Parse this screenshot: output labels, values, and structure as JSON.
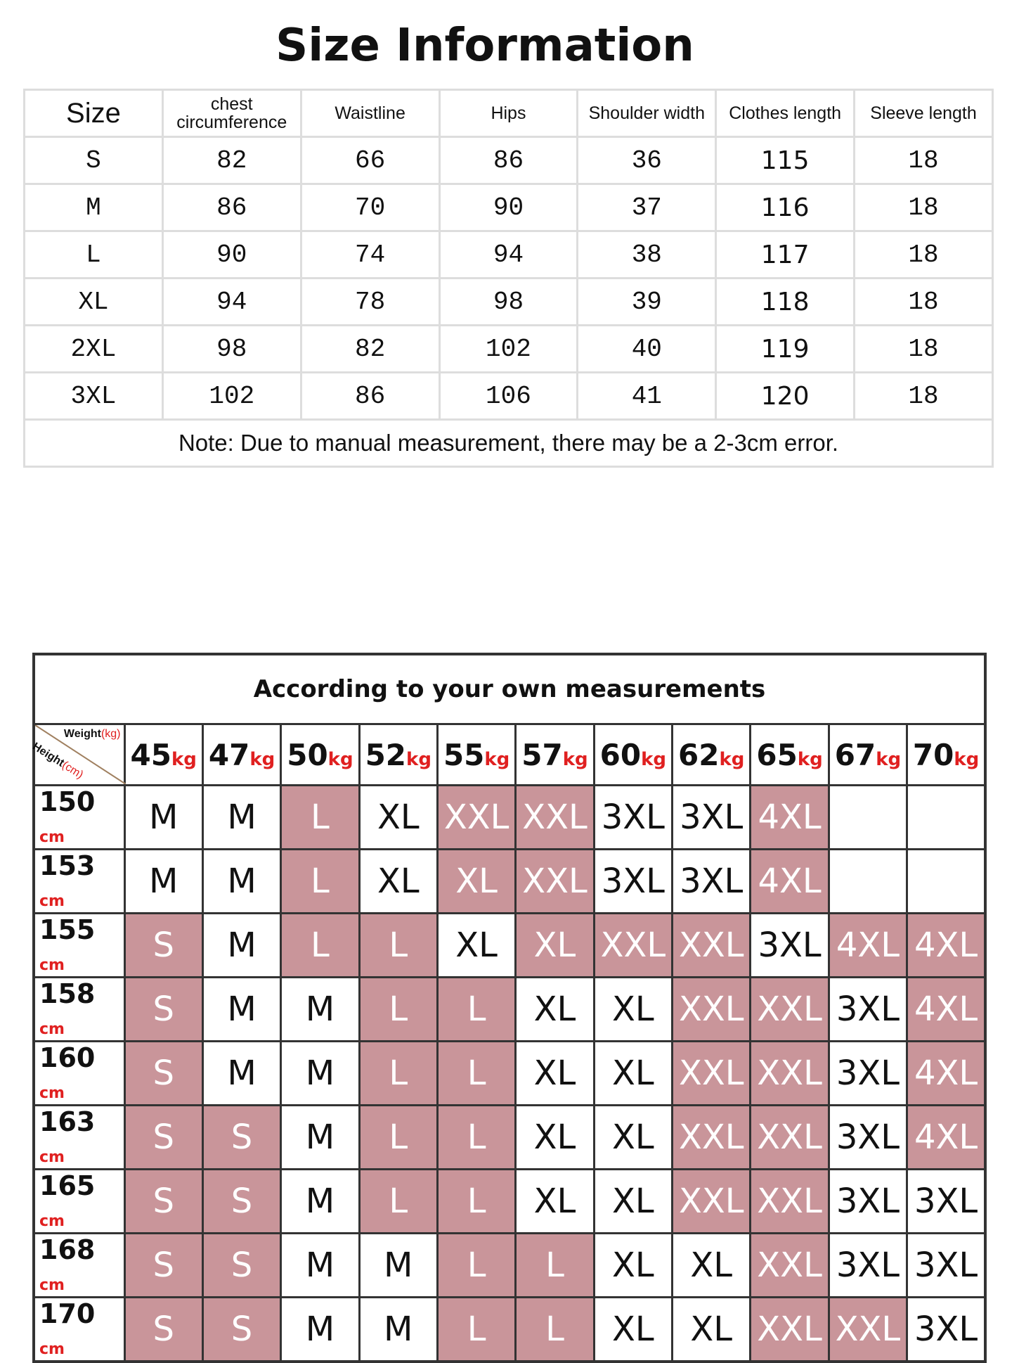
{
  "size_info": {
    "title": "Size Information",
    "headers": [
      "Size",
      "chest circumference",
      "Waistline",
      "Hips",
      "Shoulder width",
      "Clothes length",
      "Sleeve length"
    ],
    "rows": [
      [
        "S",
        "82",
        "66",
        "86",
        "36",
        "115",
        "18"
      ],
      [
        "M",
        "86",
        "70",
        "90",
        "37",
        "116",
        "18"
      ],
      [
        "L",
        "90",
        "74",
        "94",
        "38",
        "117",
        "18"
      ],
      [
        "XL",
        "94",
        "78",
        "98",
        "39",
        "118",
        "18"
      ],
      [
        "2XL",
        "98",
        "82",
        "102",
        "40",
        "119",
        "18"
      ],
      [
        "3XL",
        "102",
        "86",
        "106",
        "41",
        "120",
        "18"
      ]
    ],
    "note": "Note: Due to manual measurement, there may be a 2-3cm error."
  },
  "size_chart": {
    "title": "According to your own measurements",
    "corner_weight": "Weight",
    "corner_weight_unit": "(kg)",
    "corner_height": "Height",
    "corner_height_unit": "(cm)",
    "weight_unit": "kg",
    "height_unit": "cm",
    "weights": [
      "45",
      "47",
      "50",
      "52",
      "55",
      "57",
      "60",
      "62",
      "65",
      "67",
      "70"
    ],
    "highlight_color": "#c9959a",
    "rows": [
      {
        "height": "150",
        "sizes": [
          "M",
          "M",
          "L",
          "XL",
          "XXL",
          "XXL",
          "3XL",
          "3XL",
          "4XL",
          null,
          null
        ],
        "highlight": [
          false,
          false,
          true,
          false,
          true,
          true,
          false,
          false,
          true,
          false,
          false
        ]
      },
      {
        "height": "153",
        "sizes": [
          "M",
          "M",
          "L",
          "XL",
          "XL",
          "XXL",
          "3XL",
          "3XL",
          "4XL",
          null,
          null
        ],
        "highlight": [
          false,
          false,
          true,
          false,
          true,
          true,
          false,
          false,
          true,
          false,
          false
        ]
      },
      {
        "height": "155",
        "sizes": [
          "S",
          "M",
          "L",
          "L",
          "XL",
          "XL",
          "XXL",
          "XXL",
          "3XL",
          "4XL",
          "4XL"
        ],
        "highlight": [
          true,
          false,
          true,
          true,
          false,
          true,
          true,
          true,
          false,
          true,
          true
        ]
      },
      {
        "height": "158",
        "sizes": [
          "S",
          "M",
          "M",
          "L",
          "L",
          "XL",
          "XL",
          "XXL",
          "XXL",
          "3XL",
          "4XL"
        ],
        "highlight": [
          true,
          false,
          false,
          true,
          true,
          false,
          false,
          true,
          true,
          false,
          true
        ]
      },
      {
        "height": "160",
        "sizes": [
          "S",
          "M",
          "M",
          "L",
          "L",
          "XL",
          "XL",
          "XXL",
          "XXL",
          "3XL",
          "4XL"
        ],
        "highlight": [
          true,
          false,
          false,
          true,
          true,
          false,
          false,
          true,
          true,
          false,
          true
        ]
      },
      {
        "height": "163",
        "sizes": [
          "S",
          "S",
          "M",
          "L",
          "L",
          "XL",
          "XL",
          "XXL",
          "XXL",
          "3XL",
          "4XL"
        ],
        "highlight": [
          true,
          true,
          false,
          true,
          true,
          false,
          false,
          true,
          true,
          false,
          true
        ]
      },
      {
        "height": "165",
        "sizes": [
          "S",
          "S",
          "M",
          "L",
          "L",
          "XL",
          "XL",
          "XXL",
          "XXL",
          "3XL",
          "3XL"
        ],
        "highlight": [
          true,
          true,
          false,
          true,
          true,
          false,
          false,
          true,
          true,
          false,
          false
        ]
      },
      {
        "height": "168",
        "sizes": [
          "S",
          "S",
          "M",
          "M",
          "L",
          "L",
          "XL",
          "XL",
          "XXL",
          "3XL",
          "3XL"
        ],
        "highlight": [
          true,
          true,
          false,
          false,
          true,
          true,
          false,
          false,
          true,
          false,
          false
        ]
      },
      {
        "height": "170",
        "sizes": [
          "S",
          "S",
          "M",
          "M",
          "L",
          "L",
          "XL",
          "XL",
          "XXL",
          "XXL",
          "3XL"
        ],
        "highlight": [
          true,
          true,
          false,
          false,
          true,
          true,
          false,
          false,
          true,
          true,
          false
        ]
      }
    ]
  }
}
